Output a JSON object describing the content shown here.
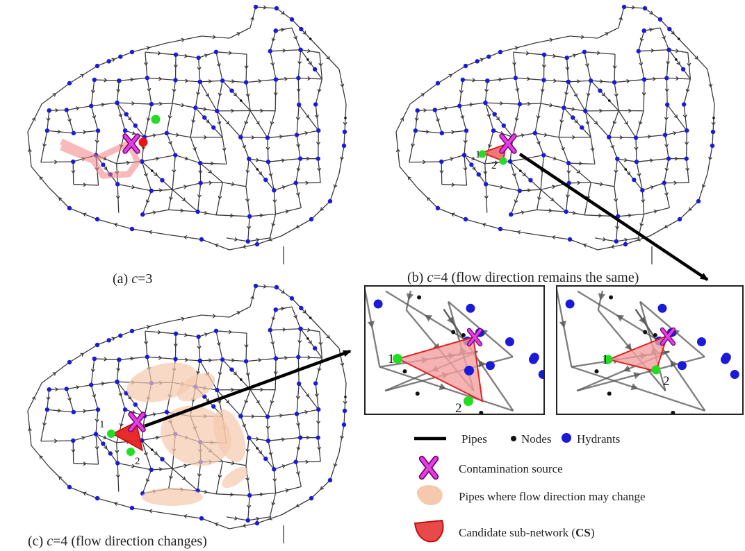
{
  "panels": {
    "a": {
      "prefix": "(a) ",
      "var": "c",
      "suffix": "=3"
    },
    "b": {
      "prefix": "(b) ",
      "var": "c",
      "suffix": "=4 (flow direction remains the same)"
    },
    "c": {
      "prefix": "(c) ",
      "var": "c",
      "suffix": "=4 (flow direction changes)"
    }
  },
  "node_labels": {
    "one": "1",
    "two": "2"
  },
  "legend": {
    "pipes": "Pipes",
    "nodes": "Nodes",
    "hydrants": "Hydrants",
    "contamination": "Contamination source",
    "flow_change": "Pipes where flow direction may change",
    "candidate_prefix": "Candidate sub-network (",
    "candidate_abbr": "CS",
    "candidate_suffix": ")"
  },
  "colors": {
    "pipe": "#3a3a3a",
    "hydrant": "#1a1ad8",
    "node": "#111111",
    "contamination": "#cc22cc",
    "candidate": "#e02020",
    "candidate_fill": "#f4a0a0",
    "flow_change_fill": "#f5c9ae",
    "marker_green": "#22dd22",
    "marker_red": "#ee1111"
  },
  "icons": [
    "contamination-x-icon",
    "candidate-subnetwork-icon",
    "flow-change-blob-icon",
    "arrow-icon"
  ]
}
